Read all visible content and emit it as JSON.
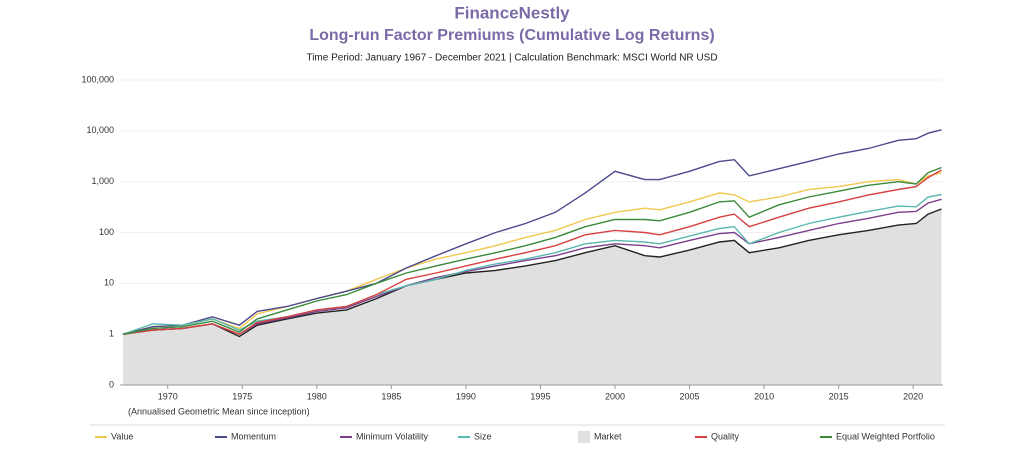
{
  "chart_data": {
    "type": "line",
    "brand": "FinanceNestly",
    "title": "Long-run Factor Premiums (Cumulative Log Returns)",
    "subtitle": "Time Period: January 1967 - December 2021  |  Calculation Benchmark: MSCI World NR USD",
    "annotation": "(Annualised Geometric Mean since inception)",
    "log_scale": true,
    "grid": true,
    "legend": "bottom",
    "xlim": [
      1966.8,
      2022
    ],
    "xticks": [
      1970,
      1975,
      1980,
      1985,
      1990,
      1995,
      2000,
      2005,
      2010,
      2015,
      2020
    ],
    "ylim": [
      0.1,
      100000
    ],
    "yticks": [
      {
        "value": 0.1,
        "label": "0"
      },
      1,
      10,
      100,
      {
        "value": 1000,
        "label": "1,000"
      },
      {
        "value": 10000,
        "label": "10,000"
      },
      {
        "value": 100000,
        "label": "100,000"
      }
    ],
    "x": [
      1967,
      1969,
      1971,
      1973,
      1974.8,
      1976,
      1978,
      1980,
      1982,
      1984,
      1986,
      1988,
      1990,
      1992,
      1994,
      1996,
      1998,
      2000,
      2002,
      2003,
      2005,
      2007,
      2008,
      2009,
      2011,
      2013,
      2015,
      2017,
      2019,
      2020.2,
      2021,
      2021.9
    ],
    "series": [
      {
        "name": "Value",
        "color": "#f0c850",
        "values": [
          1,
          1.4,
          1.5,
          2,
          1.3,
          2.5,
          3.5,
          5,
          7,
          12,
          20,
          30,
          40,
          55,
          80,
          110,
          180,
          250,
          300,
          280,
          400,
          600,
          550,
          400,
          500,
          700,
          800,
          1000,
          1100,
          900,
          1300,
          1500
        ]
      },
      {
        "name": "Momentum",
        "color": "#4a4a8c",
        "values": [
          1,
          1.4,
          1.5,
          2.2,
          1.5,
          2.8,
          3.5,
          5,
          7,
          10,
          20,
          35,
          60,
          100,
          150,
          250,
          600,
          1600,
          1100,
          1100,
          1600,
          2500,
          2700,
          1300,
          1800,
          2500,
          3500,
          4500,
          6500,
          7000,
          9000,
          10500
        ]
      },
      {
        "name": "Minimum Volatility",
        "color": "#7a3e8c",
        "values": [
          1,
          1.2,
          1.3,
          1.6,
          1.0,
          1.6,
          2.1,
          2.8,
          3.3,
          5.5,
          9,
          13,
          17,
          22,
          28,
          35,
          50,
          60,
          55,
          50,
          70,
          95,
          100,
          60,
          80,
          110,
          150,
          190,
          250,
          260,
          380,
          450
        ]
      },
      {
        "name": "Size",
        "color": "#5ab8b0",
        "values": [
          1,
          1.6,
          1.5,
          2,
          1.2,
          1.8,
          2.2,
          3,
          3.5,
          6,
          9,
          12,
          18,
          24,
          30,
          40,
          60,
          70,
          65,
          60,
          85,
          120,
          130,
          60,
          100,
          150,
          200,
          260,
          330,
          320,
          500,
          560
        ]
      },
      {
        "name": "Market",
        "color": "#222222",
        "fill_color": "#e0e0e0",
        "area": true,
        "values": [
          1,
          1.2,
          1.3,
          1.6,
          0.9,
          1.5,
          2,
          2.6,
          3,
          5,
          9,
          12,
          16,
          18,
          22,
          28,
          40,
          55,
          35,
          33,
          45,
          65,
          70,
          40,
          50,
          70,
          90,
          110,
          140,
          150,
          230,
          290
        ]
      },
      {
        "name": "Quality",
        "color": "#d94040",
        "values": [
          1,
          1.2,
          1.3,
          1.6,
          1.0,
          1.7,
          2.2,
          3,
          3.5,
          6,
          12,
          16,
          22,
          30,
          40,
          55,
          90,
          110,
          100,
          90,
          130,
          200,
          230,
          130,
          200,
          300,
          400,
          550,
          700,
          800,
          1200,
          1700
        ]
      },
      {
        "name": "Equal Weighted Portfolio",
        "color": "#3a8a3a",
        "values": [
          1,
          1.3,
          1.4,
          1.8,
          1.1,
          2,
          3,
          4.5,
          6,
          10,
          16,
          22,
          30,
          40,
          55,
          80,
          130,
          180,
          180,
          170,
          250,
          400,
          420,
          200,
          350,
          500,
          650,
          850,
          1000,
          900,
          1500,
          1900
        ]
      }
    ]
  }
}
